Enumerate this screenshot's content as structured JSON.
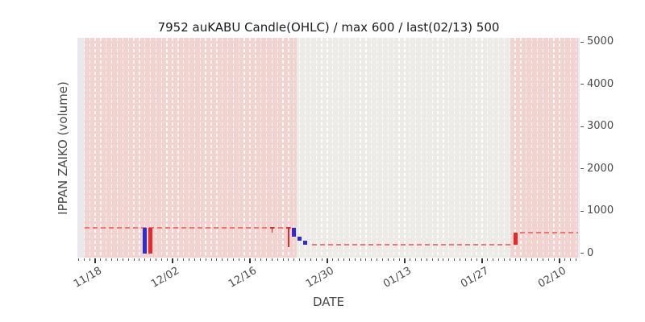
{
  "chart_data": {
    "type": "candlestick",
    "title": "7952 auKABU Candle(OHLC) / max 600 / last(02/13) 500",
    "xlabel": "DATE",
    "ylabel": "IPPAN ZAIKO (volume)",
    "y_axis_side": "right",
    "ylim": [
      -100,
      5100
    ],
    "y_ticks": [
      0,
      1000,
      2000,
      3000,
      4000,
      5000
    ],
    "x_day_span": [
      -3.21,
      87.65
    ],
    "x_tick_rotation_deg": 30,
    "x_major_ticks": [
      {
        "label": "11/18",
        "day": 0
      },
      {
        "label": "12/02",
        "day": 14
      },
      {
        "label": "12/16",
        "day": 28
      },
      {
        "label": "12/30",
        "day": 42
      },
      {
        "label": "01/13",
        "day": 56
      },
      {
        "label": "01/27",
        "day": 70
      },
      {
        "label": "02/10",
        "day": 84
      }
    ],
    "grid": {
      "vertical_day_lines": true,
      "horizontal_lines": false,
      "style": "white-dashed"
    },
    "background_spans": [
      {
        "from_day": -1.9,
        "to_day": 36.5,
        "color_key": "span_pink"
      },
      {
        "from_day": 36.5,
        "to_day": 75.1,
        "color_key": "span_gray"
      },
      {
        "from_day": 75.1,
        "to_day": 87.35,
        "color_key": "span_pink"
      }
    ],
    "close_dashed_segments": [
      {
        "from_day": -1.9,
        "to_day": 35.6,
        "value": 600
      },
      {
        "from_day": 39.2,
        "to_day": 75.1,
        "value": 200
      },
      {
        "from_day": 76.9,
        "to_day": 87.35,
        "value": 500
      }
    ],
    "candles": [
      {
        "date": "11/27",
        "day": 9,
        "open": 600,
        "high": 600,
        "low": 0,
        "close": 0,
        "direction": "down"
      },
      {
        "date": "11/28",
        "day": 10,
        "open": 0,
        "high": 600,
        "low": 0,
        "close": 600,
        "direction": "up"
      },
      {
        "date": "12/20",
        "day": 32,
        "open": 600,
        "high": 600,
        "low": 500,
        "close": 600,
        "direction": "up"
      },
      {
        "date": "12/23",
        "day": 35,
        "open": 600,
        "high": 600,
        "low": 150,
        "close": 600,
        "direction": "up"
      },
      {
        "date": "12/24",
        "day": 36,
        "open": 600,
        "high": 600,
        "low": 400,
        "close": 400,
        "direction": "down"
      },
      {
        "date": "12/25",
        "day": 37,
        "open": 400,
        "high": 400,
        "low": 300,
        "close": 300,
        "direction": "down"
      },
      {
        "date": "12/26",
        "day": 38,
        "open": 300,
        "high": 300,
        "low": 200,
        "close": 200,
        "direction": "down"
      },
      {
        "date": "02/02",
        "day": 76,
        "open": 200,
        "high": 500,
        "low": 200,
        "close": 500,
        "direction": "up"
      }
    ],
    "colors": {
      "up_candle": "#e62a2a",
      "down_candle": "#2d2dd2",
      "close_line": "#f47474",
      "span_pink": "#f3d3cf",
      "span_gray": "#edebe7",
      "plot_bg": "#e9e9e9",
      "grid_line": "#ffffff",
      "axis_text": "#4a4a4a",
      "title_text": "#1a1a1a"
    }
  }
}
